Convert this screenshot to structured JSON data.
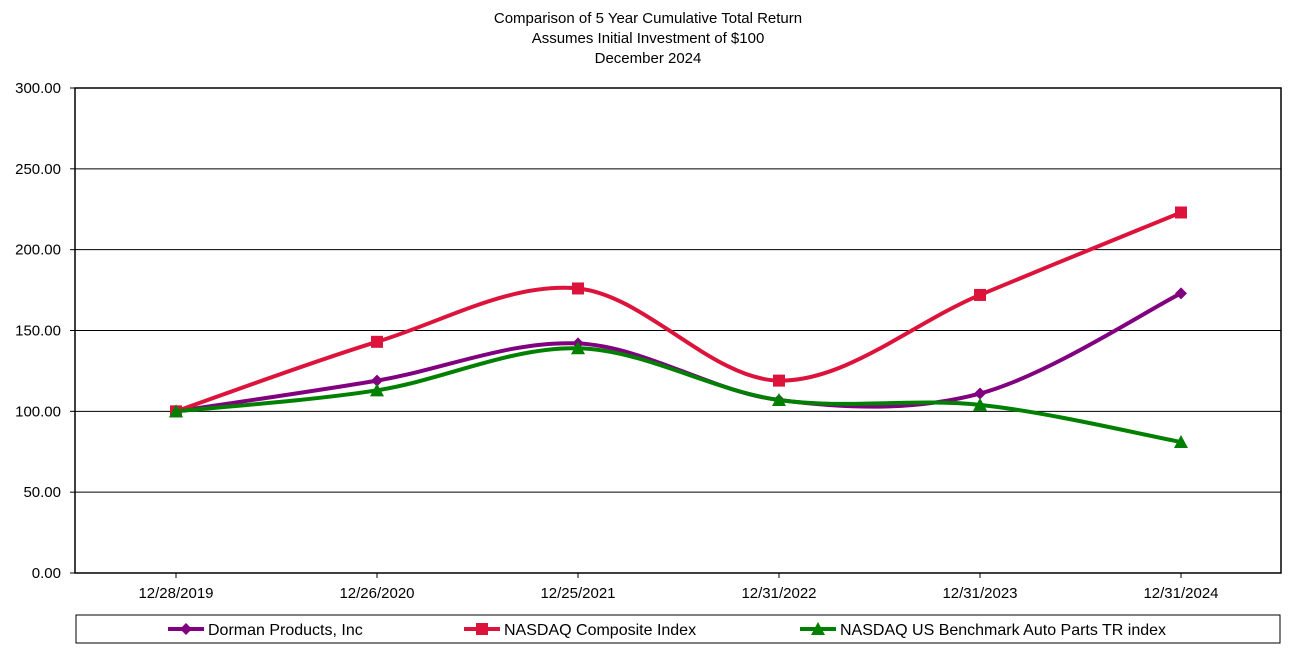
{
  "chart_data": {
    "type": "line",
    "title": [
      "Comparison of 5 Year Cumulative Total Return",
      "Assumes Initial Investment of $100",
      "December 2024"
    ],
    "categories": [
      "12/28/2019",
      "12/26/2020",
      "12/25/2021",
      "12/31/2022",
      "12/31/2023",
      "12/31/2024"
    ],
    "ylim": [
      0,
      300
    ],
    "yticks": [
      0,
      50,
      100,
      150,
      200,
      250,
      300
    ],
    "ytick_labels": [
      "0.00",
      "50.00",
      "100.00",
      "150.00",
      "200.00",
      "250.00",
      "300.00"
    ],
    "grid": true,
    "legend_position": "bottom",
    "series": [
      {
        "name": "Dorman Products, Inc",
        "color": "#800080",
        "marker": "diamond",
        "values": [
          100,
          119,
          142,
          107,
          111,
          173
        ]
      },
      {
        "name": "NASDAQ Composite Index",
        "color": "#DC143C",
        "marker": "square",
        "values": [
          100,
          143,
          176,
          119,
          172,
          223
        ]
      },
      {
        "name": "NASDAQ US Benchmark Auto Parts TR index",
        "color": "#008000",
        "marker": "triangle",
        "values": [
          100,
          113,
          139,
          107,
          104,
          81
        ]
      }
    ]
  }
}
